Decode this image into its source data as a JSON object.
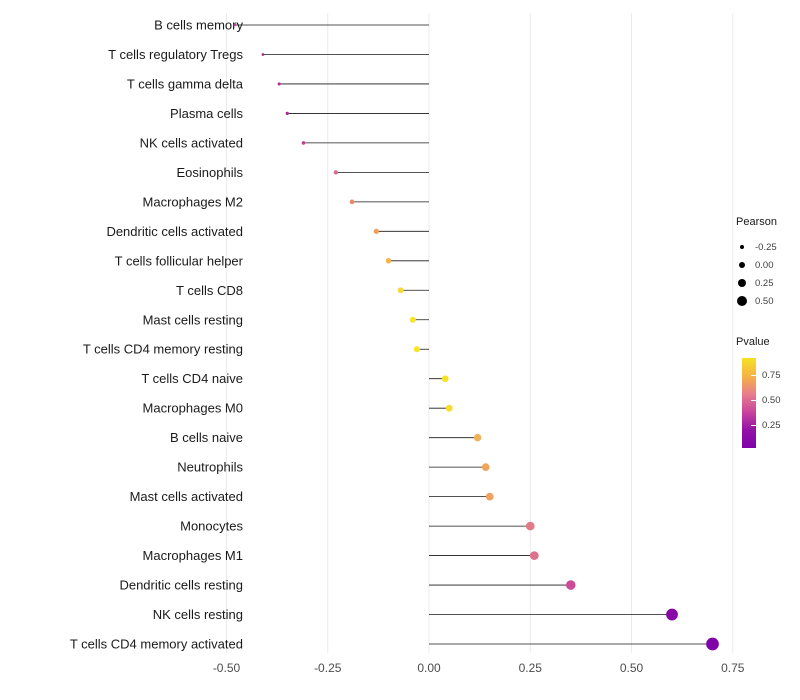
{
  "chart": {
    "background": "#FFFFFF",
    "grid_color": "#EBEBEB",
    "stem_color": "#1A1A1A",
    "axis_tick_color": "#4D4D4D",
    "category_label_color": "#1A1A1A"
  },
  "chart_data": {
    "type": "lollipop",
    "orientation": "horizontal",
    "title": "",
    "xlabel": "",
    "ylabel": "",
    "xlim": [
      -0.5,
      0.75
    ],
    "baseline": 0,
    "grid": true,
    "legend_position": "right",
    "x_ticks": [
      -0.5,
      -0.25,
      0,
      0.25,
      0.5,
      0.75
    ],
    "x_tick_labels": [
      "-0.50",
      "-0.25",
      "0.00",
      "0.25",
      "0.50",
      "0.75"
    ],
    "categories": [
      "B cells memory",
      "T cells regulatory Tregs",
      "T cells gamma delta",
      "Plasma cells",
      "NK cells activated",
      "Eosinophils",
      "Macrophages M2",
      "Dendritic cells activated",
      "T cells follicular helper",
      "T cells CD8",
      "Mast cells resting",
      "T cells CD4 memory resting",
      "T cells CD4 naive",
      "Macrophages M0",
      "B cells naive",
      "Neutrophils",
      "Mast cells activated",
      "Monocytes",
      "Macrophages M1",
      "Dendritic cells resting",
      "NK cells resting",
      "T cells CD4 memory activated"
    ],
    "series": [
      {
        "name": "Pearson",
        "values": [
          -0.48,
          -0.41,
          -0.37,
          -0.35,
          -0.31,
          -0.23,
          -0.19,
          -0.13,
          -0.1,
          -0.07,
          -0.04,
          -0.03,
          0.04,
          0.05,
          0.12,
          0.14,
          0.15,
          0.25,
          0.26,
          0.35,
          0.6,
          0.7
        ]
      },
      {
        "name": "Pvalue (estimated from color legend)",
        "values": [
          0.12,
          0.08,
          0.1,
          0.09,
          0.15,
          0.32,
          0.45,
          0.55,
          0.62,
          0.8,
          0.85,
          0.88,
          0.85,
          0.82,
          0.58,
          0.52,
          0.5,
          0.3,
          0.28,
          0.13,
          0.01,
          0.005
        ]
      }
    ],
    "point_colors": [
      "#B5308F",
      "#A82598",
      "#B92D96",
      "#AE2A93",
      "#C04392",
      "#DB6A8E",
      "#EC8766",
      "#F09D55",
      "#F4B64A",
      "#F6D838",
      "#F8E32C",
      "#F8E52A",
      "#F7E228",
      "#F6DB30",
      "#EFB25B",
      "#F0A55C",
      "#F0A060",
      "#E07A89",
      "#DD728C",
      "#CB4B96",
      "#8808A6",
      "#7E03A8"
    ]
  },
  "legend": {
    "size": {
      "title": "Pearson",
      "items": [
        {
          "label": "-0.25",
          "value": -0.25
        },
        {
          "label": "0.00",
          "value": 0.0
        },
        {
          "label": "0.25",
          "value": 0.25
        },
        {
          "label": "0.50",
          "value": 0.5
        }
      ]
    },
    "color": {
      "title": "Pvalue",
      "ticks": [
        "0.75",
        "0.50",
        "0.25"
      ],
      "tick_values": [
        0.75,
        0.5,
        0.25
      ],
      "domain": [
        0.92,
        0.02
      ],
      "gradient": [
        "#F6E126",
        "#F5B343",
        "#E87D8C",
        "#C9459B",
        "#9312A5",
        "#7E03A8"
      ]
    }
  }
}
